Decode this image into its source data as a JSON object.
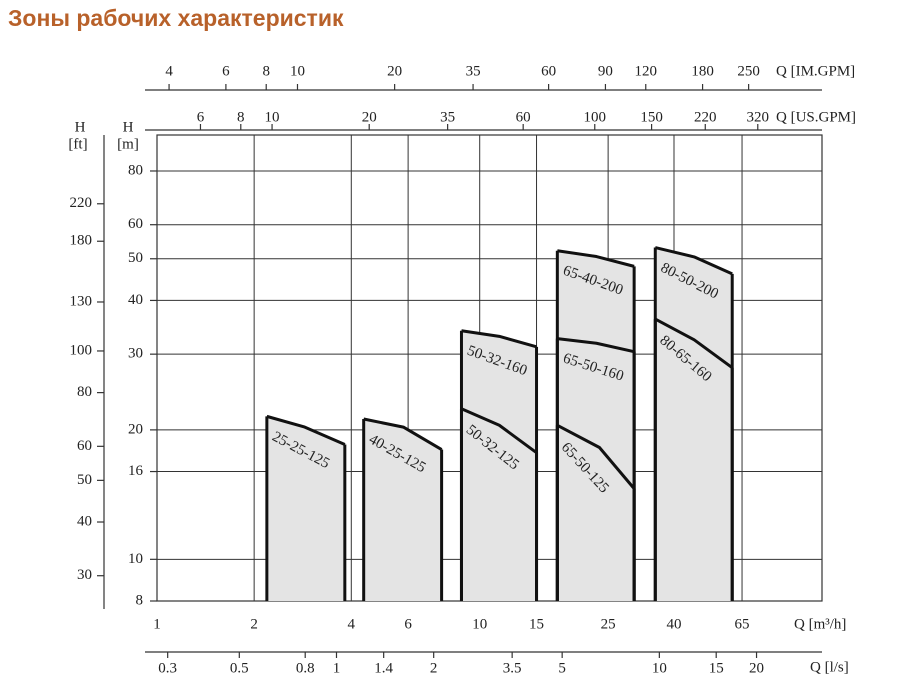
{
  "chart_data": {
    "type": "zone",
    "title": "Зоны рабочих характеристик",
    "xlabel": "Q [m³/h]",
    "ylabel": "H",
    "yunit": "[m]",
    "xlim": [
      1,
      115
    ],
    "xticks": [
      1,
      2,
      4,
      6,
      10,
      15,
      25,
      40,
      65
    ],
    "ylim": [
      8,
      97
    ],
    "yticks": [
      8,
      10,
      16,
      20,
      30,
      40,
      50,
      60,
      80
    ],
    "log_scale": true,
    "grid": true,
    "fill": "#e4e4e4",
    "color": "#111111",
    "secondary_axes": [
      {
        "label": "H",
        "unit": "[ft]",
        "side": "left",
        "lim": [
          26.2,
          318
        ],
        "ticks": [
          30,
          40,
          50,
          60,
          80,
          100,
          130,
          180,
          220
        ]
      },
      {
        "label": "Q [l/s]",
        "side": "bottom",
        "lim": [
          0.278,
          31.9
        ],
        "ticks": [
          0.3,
          0.5,
          0.8,
          1,
          1.4,
          2,
          3.5,
          5,
          10,
          15,
          20
        ]
      },
      {
        "label": "Q [US.GPM]",
        "side": "top",
        "lim": [
          4.4,
          506
        ],
        "ticks": [
          6,
          8,
          10,
          20,
          35,
          60,
          100,
          150,
          220,
          320
        ]
      },
      {
        "label": "Q [IM.GPM]",
        "side": "top",
        "lim": [
          3.67,
          422
        ],
        "ticks": [
          4,
          6,
          8,
          10,
          20,
          35,
          60,
          90,
          120,
          180,
          250
        ]
      }
    ],
    "series": [
      {
        "name": "25-25-125",
        "x": [
          2.19,
          2.87,
          3.82
        ],
        "values": [
          21.5,
          20.3,
          18.5
        ]
      },
      {
        "name": "40-25-125",
        "x": [
          4.37,
          5.8,
          7.62
        ],
        "values": [
          21.2,
          20.3,
          18.0
        ]
      },
      {
        "name": "50-32-160",
        "x": [
          8.78,
          11.5,
          15.0
        ],
        "values": [
          34.0,
          33.0,
          31.2
        ]
      },
      {
        "name": "50-32-125",
        "x": [
          8.78,
          11.5,
          15.0
        ],
        "values": [
          22.4,
          20.5,
          17.7
        ]
      },
      {
        "name": "65-40-200",
        "x": [
          17.4,
          23,
          30.1
        ],
        "values": [
          52.2,
          50.6,
          48.0
        ]
      },
      {
        "name": "65-50-160",
        "x": [
          17.4,
          23,
          30.1
        ],
        "values": [
          32.6,
          31.8,
          30.4
        ]
      },
      {
        "name": "65-50-125",
        "x": [
          17.4,
          23.5,
          30.1
        ],
        "values": [
          20.5,
          18.2,
          14.6
        ]
      },
      {
        "name": "80-50-200",
        "x": [
          35.0,
          46.2,
          60.6
        ],
        "values": [
          53.1,
          50.5,
          46.1
        ]
      },
      {
        "name": "80-65-160",
        "x": [
          35.0,
          46.2,
          60.6
        ],
        "values": [
          36.2,
          32.4,
          27.9
        ]
      }
    ]
  }
}
